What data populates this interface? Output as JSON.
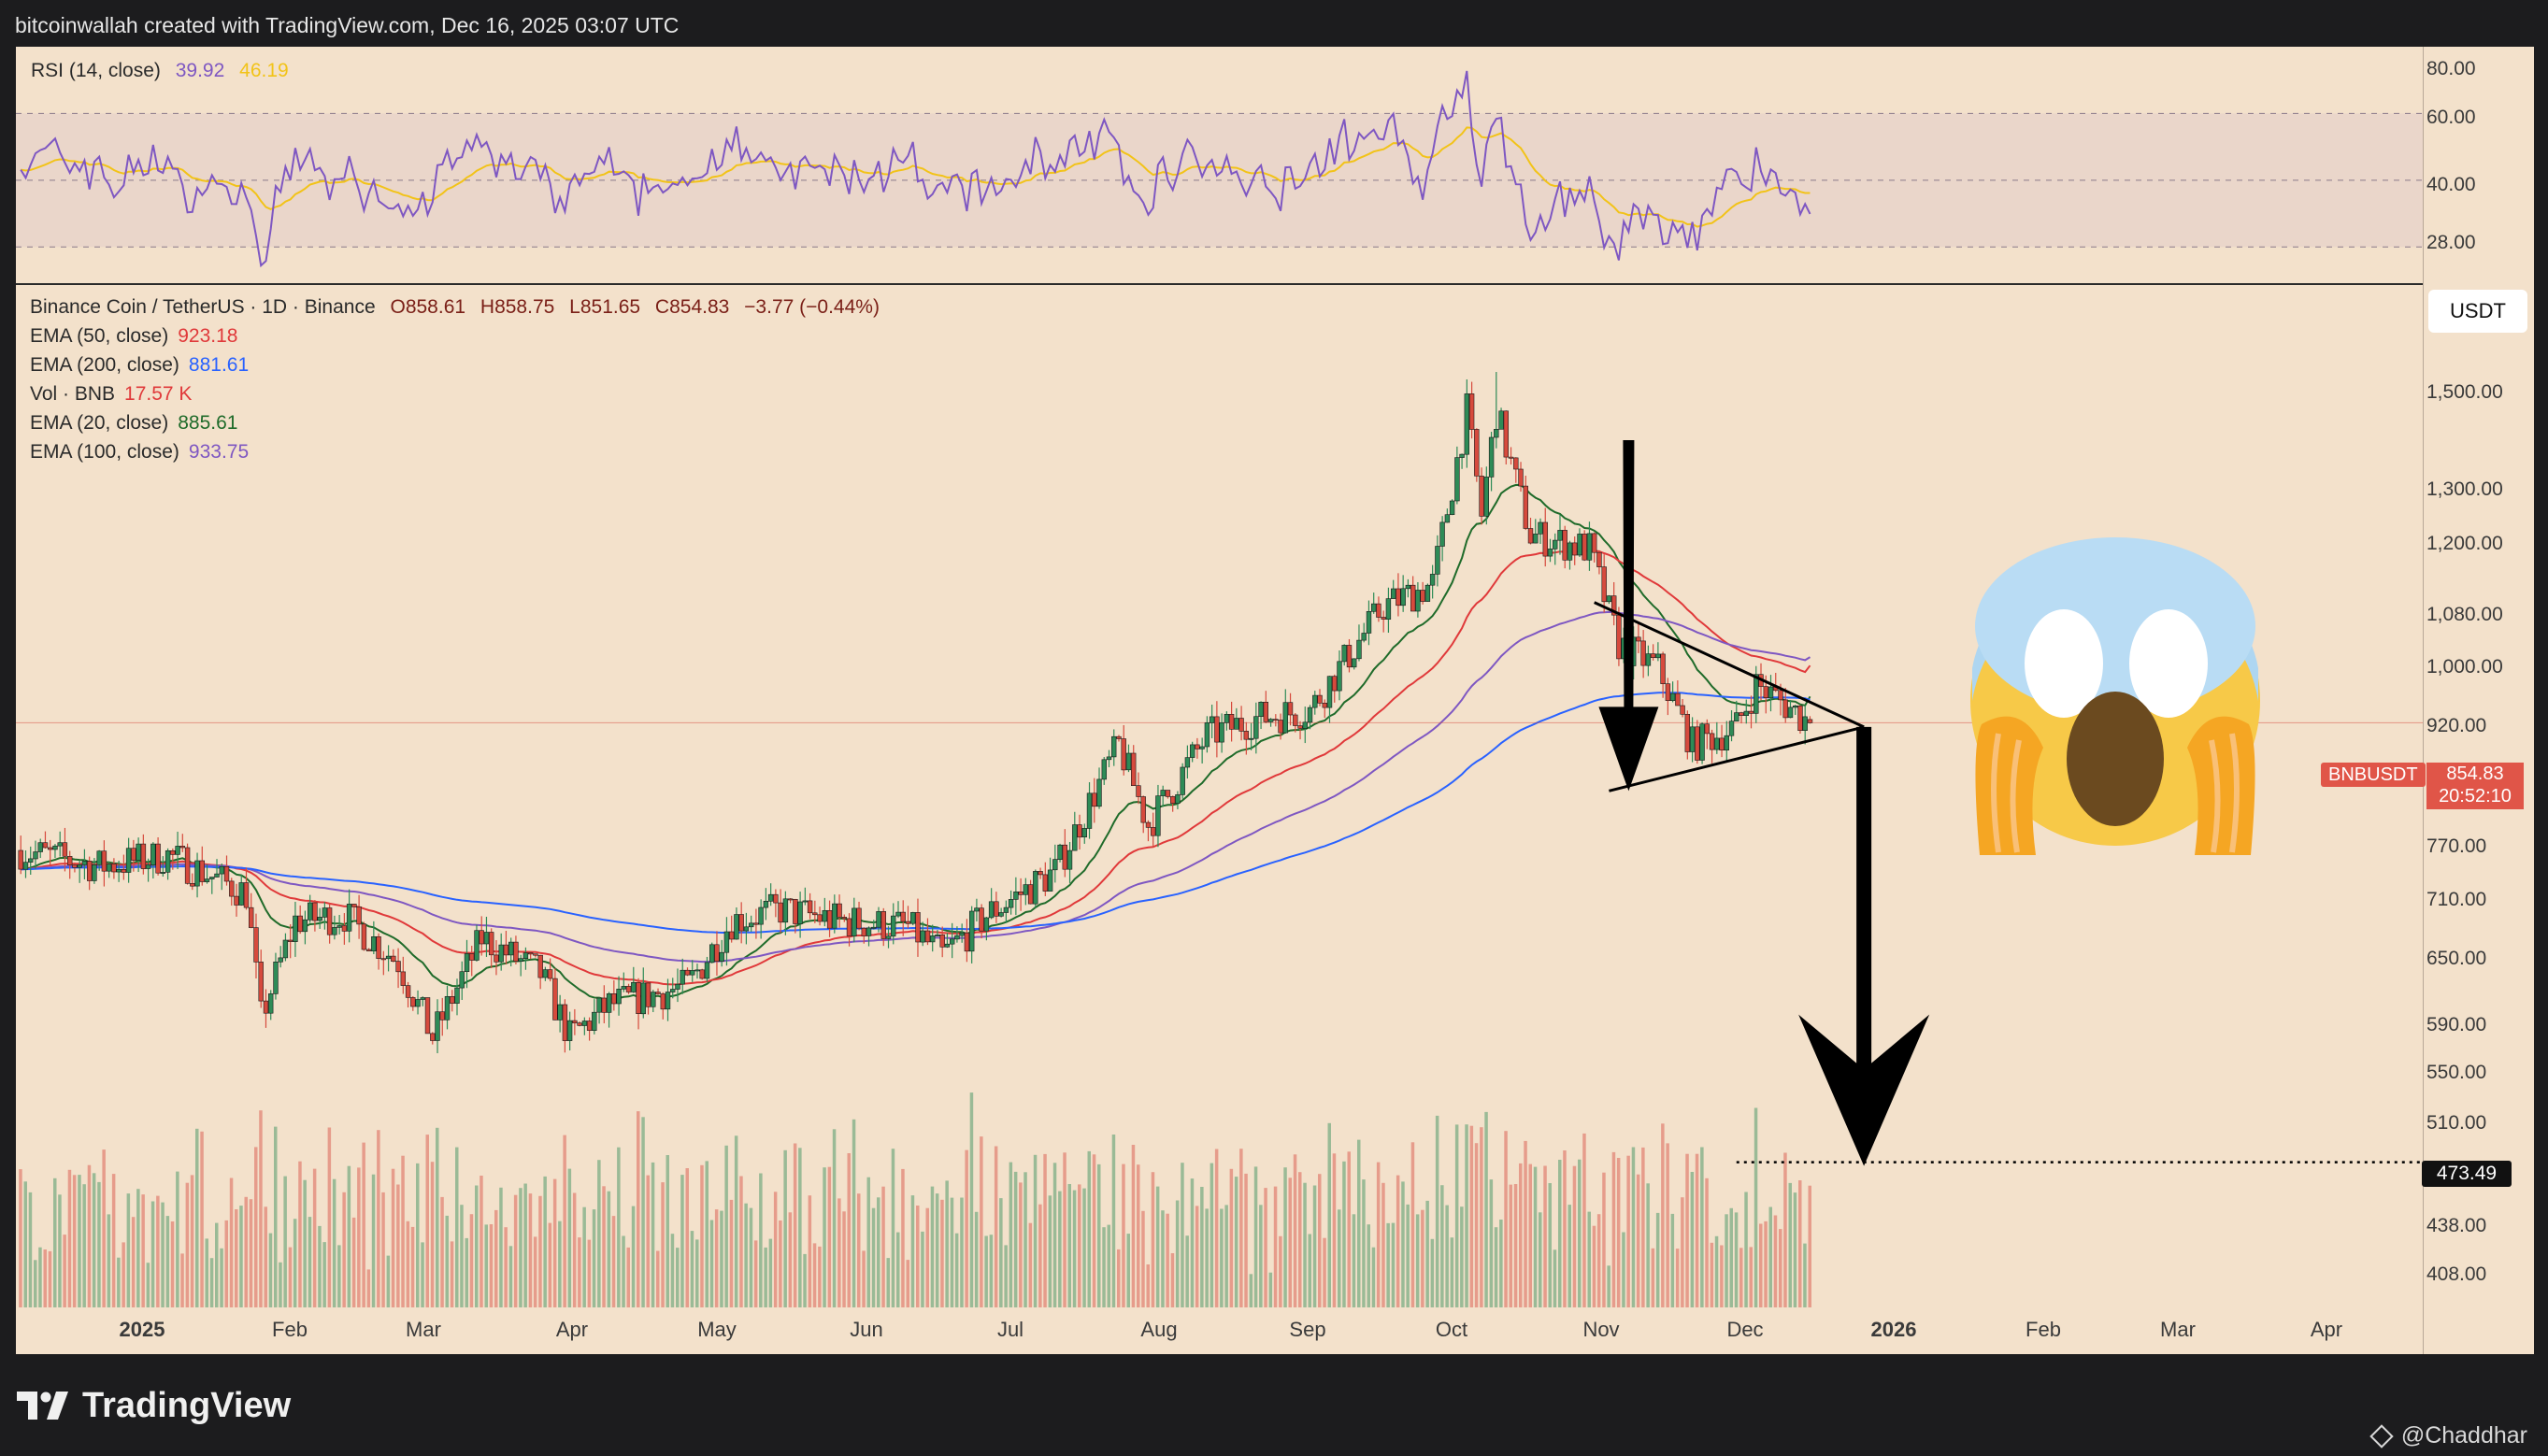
{
  "header": {
    "caption": "bitcoinwallah created with TradingView.com, Dec 16, 2025 03:07 UTC"
  },
  "rsi_legend": {
    "name": "RSI (14, close)",
    "value": "39.92",
    "ma_value": "46.19"
  },
  "rsi_axis_labels": [
    "80.00",
    "60.00",
    "40.00",
    "28.00"
  ],
  "price_legend": {
    "symbol_line": "Binance Coin / TetherUS · 1D · Binance",
    "o": "O858.61",
    "h": "H858.75",
    "l": "L851.65",
    "c": "C854.83",
    "change": "−3.77 (−0.44%)",
    "ema50": {
      "name": "EMA (50, close)",
      "value": "923.18"
    },
    "ema200": {
      "name": "EMA (200, close)",
      "value": "881.61"
    },
    "vol": {
      "name": "Vol · BNB",
      "value": "17.57 K"
    },
    "ema20": {
      "name": "EMA (20, close)",
      "value": "885.61"
    },
    "ema100": {
      "name": "EMA (100, close)",
      "value": "933.75"
    }
  },
  "price_axis_labels": [
    "1,500.00",
    "1,300.00",
    "1,200.00",
    "1,080.00",
    "1,000.00",
    "920.00",
    "770.00",
    "710.00",
    "650.00",
    "590.00",
    "550.00",
    "510.00",
    "438.00",
    "408.00"
  ],
  "currency_button": "USDT",
  "symbol_tag": "BNBUSDT",
  "last_price": "854.83",
  "countdown": "20:52:10",
  "target_label": "473.49",
  "x_axis_labels": [
    "2025",
    "Feb",
    "Mar",
    "Apr",
    "May",
    "Jun",
    "Jul",
    "Aug",
    "Sep",
    "Oct",
    "Nov",
    "Dec",
    "2026",
    "Feb",
    "Mar",
    "Apr"
  ],
  "footer": {
    "logo_text": "TradingView",
    "credit": "@Chaddhar"
  },
  "colors": {
    "background": "#f3e1cb",
    "candle_up": "#2e8b57",
    "candle_down": "#d64a3d",
    "ema20": "#1f6b2a",
    "ema50": "#e0393a",
    "ema100": "#7e57c2",
    "ema200": "#2962ff",
    "rsi": "#7e57c2",
    "rsi_ma": "#f2c318"
  },
  "chart_data": {
    "type": "candlestick",
    "symbol": "BNBUSDT",
    "interval": "1D",
    "log_scale": true,
    "close_points": [
      {
        "date": "2024-12-16",
        "close": 720
      },
      {
        "date": "2025-01-01",
        "close": 705
      },
      {
        "date": "2025-01-15",
        "close": 715
      },
      {
        "date": "2025-01-31",
        "close": 680
      },
      {
        "date": "2025-02-03",
        "close": 575
      },
      {
        "date": "2025-02-10",
        "close": 655
      },
      {
        "date": "2025-02-20",
        "close": 660
      },
      {
        "date": "2025-03-03",
        "close": 620
      },
      {
        "date": "2025-03-10",
        "close": 560
      },
      {
        "date": "2025-03-20",
        "close": 640
      },
      {
        "date": "2025-04-01",
        "close": 610
      },
      {
        "date": "2025-04-07",
        "close": 560
      },
      {
        "date": "2025-04-15",
        "close": 585
      },
      {
        "date": "2025-05-01",
        "close": 600
      },
      {
        "date": "2025-05-10",
        "close": 655
      },
      {
        "date": "2025-05-20",
        "close": 665
      },
      {
        "date": "2025-06-01",
        "close": 655
      },
      {
        "date": "2025-06-15",
        "close": 650
      },
      {
        "date": "2025-06-22",
        "close": 625
      },
      {
        "date": "2025-07-01",
        "close": 660
      },
      {
        "date": "2025-07-15",
        "close": 700
      },
      {
        "date": "2025-07-28",
        "close": 830
      },
      {
        "date": "2025-08-03",
        "close": 745
      },
      {
        "date": "2025-08-15",
        "close": 840
      },
      {
        "date": "2025-08-25",
        "close": 860
      },
      {
        "date": "2025-09-05",
        "close": 870
      },
      {
        "date": "2025-09-20",
        "close": 1000
      },
      {
        "date": "2025-09-30",
        "close": 1030
      },
      {
        "date": "2025-10-07",
        "close": 1300
      },
      {
        "date": "2025-10-10",
        "close": 1130
      },
      {
        "date": "2025-10-13",
        "close": 1300
      },
      {
        "date": "2025-10-20",
        "close": 1100
      },
      {
        "date": "2025-11-01",
        "close": 1080
      },
      {
        "date": "2025-11-07",
        "close": 950
      },
      {
        "date": "2025-11-15",
        "close": 920
      },
      {
        "date": "2025-11-22",
        "close": 830
      },
      {
        "date": "2025-12-01",
        "close": 850
      },
      {
        "date": "2025-12-05",
        "close": 900
      },
      {
        "date": "2025-12-10",
        "close": 880
      },
      {
        "date": "2025-12-16",
        "close": 854.83
      }
    ],
    "last_ohlc": {
      "open": 858.61,
      "high": 858.75,
      "low": 851.65,
      "close": 854.83
    },
    "high_marker": {
      "date": "2025-10-13",
      "value": 1370
    },
    "ema": [
      {
        "period": 20,
        "value": 885.61
      },
      {
        "period": 50,
        "value": 923.18
      },
      {
        "period": 100,
        "value": 933.75
      },
      {
        "period": 200,
        "value": 881.61
      }
    ],
    "volume_last": "17.57 K",
    "rsi": {
      "period": 14,
      "value": 39.92,
      "ma": 46.19,
      "range": [
        20,
        90
      ],
      "levels": [
        70,
        50,
        30
      ]
    },
    "annotations": {
      "triangle_pattern": {
        "apex_date": "2025-12-27",
        "apex_value": 850
      },
      "target": {
        "value": 473.49,
        "from_date": "2025-12-01"
      }
    },
    "x_range": [
      "2024-12-15",
      "2026-04-20"
    ],
    "y_range": [
      390,
      1650
    ]
  }
}
